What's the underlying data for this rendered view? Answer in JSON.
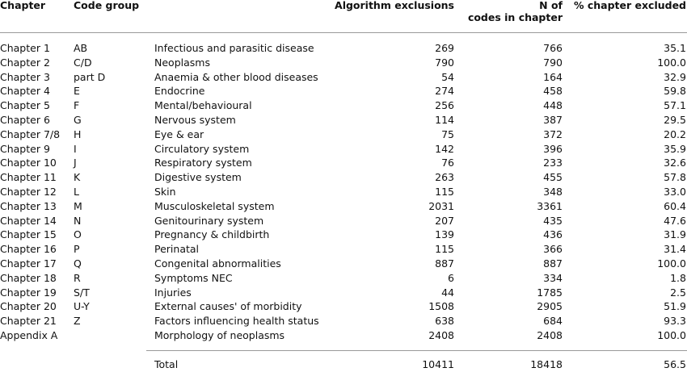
{
  "headers": {
    "chapter": "Chapter",
    "code_group": "Code group",
    "algorithm_exclusions": "Algorithm exclusions",
    "n_codes_line1": "N of",
    "n_codes_line2": "codes in chapter",
    "pct_excluded": "% chapter excluded"
  },
  "rows": [
    {
      "chapter": "Chapter 1",
      "code": "AB",
      "desc": "Infectious and parasitic disease",
      "alg": "269",
      "n": "766",
      "pct": "35.1"
    },
    {
      "chapter": "Chapter 2",
      "code": "C/D",
      "desc": "Neoplasms",
      "alg": "790",
      "n": "790",
      "pct": "100.0"
    },
    {
      "chapter": "Chapter 3",
      "code": "part D",
      "desc": "Anaemia & other blood diseases",
      "alg": "54",
      "n": "164",
      "pct": "32.9"
    },
    {
      "chapter": "Chapter 4",
      "code": "E",
      "desc": "Endocrine",
      "alg": "274",
      "n": "458",
      "pct": "59.8"
    },
    {
      "chapter": "Chapter 5",
      "code": "F",
      "desc": "Mental/behavioural",
      "alg": "256",
      "n": "448",
      "pct": "57.1"
    },
    {
      "chapter": "Chapter 6",
      "code": "G",
      "desc": "Nervous system",
      "alg": "114",
      "n": "387",
      "pct": "29.5"
    },
    {
      "chapter": "Chapter 7/8",
      "code": "H",
      "desc": "Eye & ear",
      "alg": "75",
      "n": "372",
      "pct": "20.2"
    },
    {
      "chapter": "Chapter 9",
      "code": "I",
      "desc": "Circulatory system",
      "alg": "142",
      "n": "396",
      "pct": "35.9"
    },
    {
      "chapter": "Chapter 10",
      "code": "J",
      "desc": "Respiratory system",
      "alg": "76",
      "n": "233",
      "pct": "32.6"
    },
    {
      "chapter": "Chapter 11",
      "code": "K",
      "desc": "Digestive system",
      "alg": "263",
      "n": "455",
      "pct": "57.8"
    },
    {
      "chapter": "Chapter 12",
      "code": "L",
      "desc": "Skin",
      "alg": "115",
      "n": "348",
      "pct": "33.0"
    },
    {
      "chapter": "Chapter 13",
      "code": "M",
      "desc": "Musculoskeletal system",
      "alg": "2031",
      "n": "3361",
      "pct": "60.4"
    },
    {
      "chapter": "Chapter 14",
      "code": "N",
      "desc": "Genitourinary system",
      "alg": "207",
      "n": "435",
      "pct": "47.6"
    },
    {
      "chapter": "Chapter 15",
      "code": "O",
      "desc": "Pregnancy & childbirth",
      "alg": "139",
      "n": "436",
      "pct": "31.9"
    },
    {
      "chapter": "Chapter 16",
      "code": "P",
      "desc": "Perinatal",
      "alg": "115",
      "n": "366",
      "pct": "31.4"
    },
    {
      "chapter": "Chapter 17",
      "code": "Q",
      "desc": "Congenital abnormalities",
      "alg": "887",
      "n": "887",
      "pct": "100.0"
    },
    {
      "chapter": "Chapter 18",
      "code": "R",
      "desc": "Symptoms NEC",
      "alg": "6",
      "n": "334",
      "pct": "1.8"
    },
    {
      "chapter": "Chapter 19",
      "code": "S/T",
      "desc": "Injuries",
      "alg": "44",
      "n": "1785",
      "pct": "2.5"
    },
    {
      "chapter": "Chapter 20",
      "code": "U-Y",
      "desc": "External causes' of morbidity",
      "alg": "1508",
      "n": "2905",
      "pct": "51.9"
    },
    {
      "chapter": "Chapter 21",
      "code": "Z",
      "desc": "Factors influencing health status",
      "alg": "638",
      "n": "684",
      "pct": "93.3"
    },
    {
      "chapter": "Appendix A",
      "code": "",
      "desc": "Morphology of neoplasms",
      "alg": "2408",
      "n": "2408",
      "pct": "100.0"
    }
  ],
  "total": {
    "label": "Total",
    "alg": "10411",
    "n": "18418",
    "pct": "56.5"
  }
}
